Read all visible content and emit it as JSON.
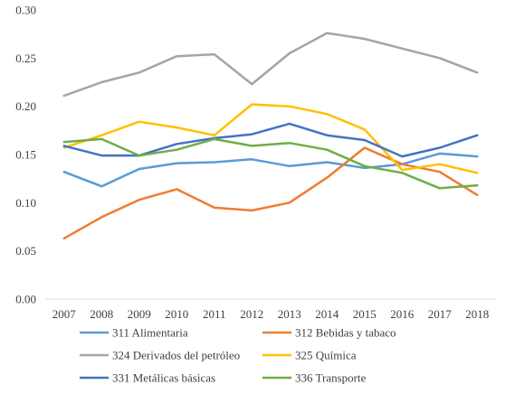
{
  "chart_data": {
    "type": "line",
    "title": "",
    "xlabel": "",
    "ylabel": "",
    "x": [
      "2007",
      "2008",
      "2009",
      "2010",
      "2011",
      "2012",
      "2013",
      "2014",
      "2015",
      "2016",
      "2017",
      "2018"
    ],
    "ylim": [
      0,
      0.3
    ],
    "yticks": [
      "0.00",
      "0.05",
      "0.10",
      "0.15",
      "0.20",
      "0.25",
      "0.30"
    ],
    "ytick_values": [
      0,
      0.05,
      0.1,
      0.15,
      0.2,
      0.25,
      0.3
    ],
    "grid": false,
    "legend_position": "bottom",
    "series": [
      {
        "name": "311 Alimentaria",
        "color": "#5b9bd5",
        "values": [
          0.132,
          0.117,
          0.135,
          0.141,
          0.142,
          0.145,
          0.138,
          0.142,
          0.136,
          0.14,
          0.151,
          0.148
        ]
      },
      {
        "name": "312 Bebidas y tabaco",
        "color": "#ed7d31",
        "values": [
          0.063,
          0.085,
          0.103,
          0.114,
          0.095,
          0.092,
          0.1,
          0.126,
          0.157,
          0.14,
          0.132,
          0.108
        ]
      },
      {
        "name": "324 Derivados del petróleo",
        "color": "#a5a5a5",
        "values": [
          0.211,
          0.225,
          0.235,
          0.252,
          0.254,
          0.223,
          0.255,
          0.276,
          0.27,
          0.26,
          0.25,
          0.235
        ]
      },
      {
        "name": "325 Química",
        "color": "#ffc000",
        "values": [
          0.157,
          0.17,
          0.184,
          0.178,
          0.17,
          0.202,
          0.2,
          0.192,
          0.176,
          0.134,
          0.14,
          0.131
        ]
      },
      {
        "name": "331 Metálicas básicas",
        "color": "#4472c4",
        "values": [
          0.159,
          0.149,
          0.149,
          0.161,
          0.167,
          0.171,
          0.182,
          0.17,
          0.165,
          0.148,
          0.157,
          0.17
        ]
      },
      {
        "name": "336 Transporte",
        "color": "#70ad47",
        "values": [
          0.163,
          0.166,
          0.149,
          0.155,
          0.166,
          0.159,
          0.162,
          0.155,
          0.138,
          0.131,
          0.115,
          0.118
        ]
      }
    ]
  }
}
